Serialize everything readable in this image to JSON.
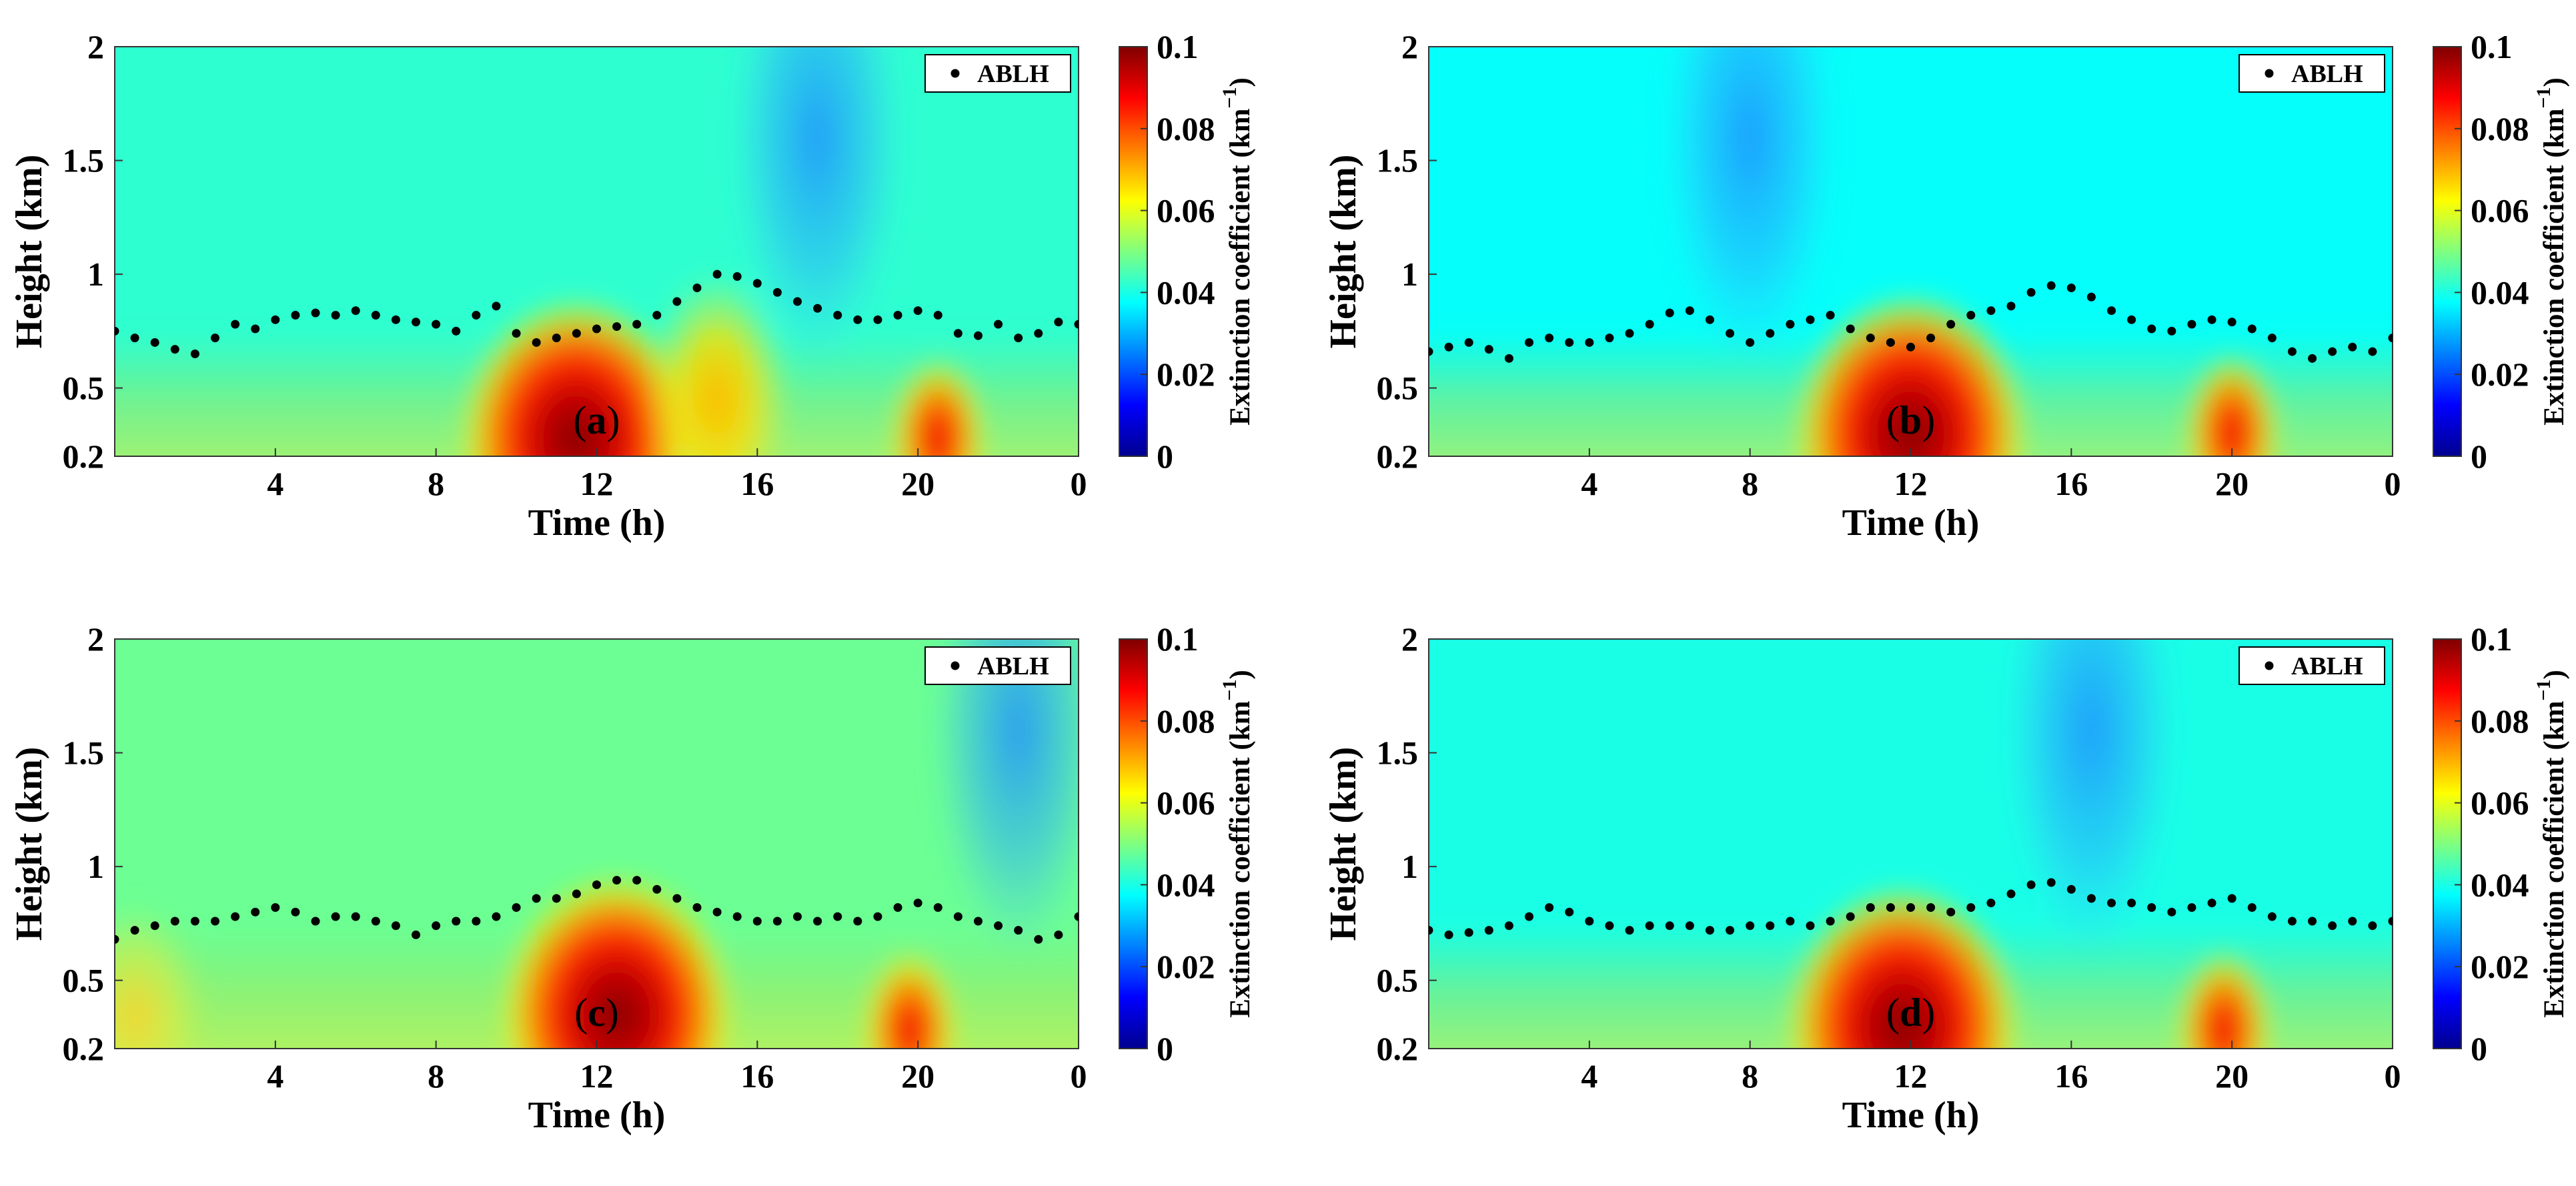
{
  "chart_data": [
    {
      "type": "heatmap",
      "panel_label": "a",
      "xlabel": "Time (h)",
      "ylabel": "Height (km)",
      "colorbar_label": "Extinction coefficient (km",
      "colorbar_exponent": "−1",
      "colorbar_close": ")",
      "x_ticks": [
        "4",
        "8",
        "12",
        "16",
        "20",
        "0"
      ],
      "x_tick_values": [
        4,
        8,
        12,
        16,
        20,
        24
      ],
      "y_ticks": [
        "0.2",
        "0.5",
        "1",
        "1.5",
        "2"
      ],
      "y_tick_values": [
        0.2,
        0.5,
        1,
        1.5,
        2
      ],
      "xlim": [
        0,
        24
      ],
      "ylim": [
        0.2,
        2
      ],
      "colorbar_ticks": [
        "0",
        "0.02",
        "0.04",
        "0.06",
        "0.08",
        "0.1"
      ],
      "colorbar_tick_values": [
        0,
        0.02,
        0.04,
        0.06,
        0.08,
        0.1
      ],
      "clim": [
        0,
        0.1
      ],
      "background_extinction": 0.042,
      "legend": "ABLH",
      "legend_position": "top-right",
      "ablh": {
        "time": [
          0,
          0.5,
          1,
          1.5,
          2,
          2.5,
          3,
          3.5,
          4,
          4.5,
          5,
          5.5,
          6,
          6.5,
          7,
          7.5,
          8,
          8.5,
          9,
          9.5,
          10,
          10.5,
          11,
          11.5,
          12,
          12.5,
          13,
          13.5,
          14,
          14.5,
          15,
          15.5,
          16,
          16.5,
          17,
          17.5,
          18,
          18.5,
          19,
          19.5,
          20,
          20.5,
          21,
          21.5,
          22,
          22.5,
          23,
          23.5,
          24
        ],
        "height": [
          0.75,
          0.72,
          0.7,
          0.67,
          0.65,
          0.72,
          0.78,
          0.76,
          0.8,
          0.82,
          0.83,
          0.82,
          0.84,
          0.82,
          0.8,
          0.79,
          0.78,
          0.75,
          0.82,
          0.86,
          0.74,
          0.7,
          0.72,
          0.74,
          0.76,
          0.77,
          0.78,
          0.82,
          0.88,
          0.94,
          1.0,
          0.99,
          0.96,
          0.92,
          0.88,
          0.85,
          0.82,
          0.8,
          0.8,
          0.82,
          0.84,
          0.82,
          0.74,
          0.73,
          0.78,
          0.72,
          0.74,
          0.79,
          0.78
        ]
      },
      "features": [
        {
          "name": "midday plume",
          "time_center": 11.5,
          "height_center": 0.28,
          "extinction_peak": 0.1
        },
        {
          "name": "afternoon plume",
          "time_center": 15.0,
          "height_center": 0.45,
          "extinction_peak": 0.068
        },
        {
          "name": "evening plume",
          "time_center": 20.5,
          "height_center": 0.28,
          "extinction_peak": 0.082
        },
        {
          "name": "upper clean air",
          "time_center": 17.5,
          "height_center": 1.6,
          "extinction_peak": 0.032
        }
      ]
    },
    {
      "type": "heatmap",
      "panel_label": "b",
      "xlabel": "Time (h)",
      "ylabel": "Height (km)",
      "colorbar_label": "Extinction coefficient (km",
      "colorbar_exponent": "−1",
      "colorbar_close": ")",
      "x_ticks": [
        "4",
        "8",
        "12",
        "16",
        "20",
        "0"
      ],
      "x_tick_values": [
        4,
        8,
        12,
        16,
        20,
        24
      ],
      "y_ticks": [
        "0.2",
        "0.5",
        "1",
        "1.5",
        "2"
      ],
      "y_tick_values": [
        0.2,
        0.5,
        1,
        1.5,
        2
      ],
      "xlim": [
        0,
        24
      ],
      "ylim": [
        0.2,
        2
      ],
      "colorbar_ticks": [
        "0",
        "0.02",
        "0.04",
        "0.06",
        "0.08",
        "0.1"
      ],
      "colorbar_tick_values": [
        0,
        0.02,
        0.04,
        0.06,
        0.08,
        0.1
      ],
      "clim": [
        0,
        0.1
      ],
      "background_extinction": 0.038,
      "legend": "ABLH",
      "legend_position": "top-right",
      "ablh": {
        "time": [
          0,
          0.5,
          1,
          1.5,
          2,
          2.5,
          3,
          3.5,
          4,
          4.5,
          5,
          5.5,
          6,
          6.5,
          7,
          7.5,
          8,
          8.5,
          9,
          9.5,
          10,
          10.5,
          11,
          11.5,
          12,
          12.5,
          13,
          13.5,
          14,
          14.5,
          15,
          15.5,
          16,
          16.5,
          17,
          17.5,
          18,
          18.5,
          19,
          19.5,
          20,
          20.5,
          21,
          21.5,
          22,
          22.5,
          23,
          23.5,
          24
        ],
        "height": [
          0.66,
          0.68,
          0.7,
          0.67,
          0.63,
          0.7,
          0.72,
          0.7,
          0.7,
          0.72,
          0.74,
          0.78,
          0.83,
          0.84,
          0.8,
          0.74,
          0.7,
          0.74,
          0.78,
          0.8,
          0.82,
          0.76,
          0.72,
          0.7,
          0.68,
          0.72,
          0.78,
          0.82,
          0.84,
          0.86,
          0.92,
          0.95,
          0.94,
          0.9,
          0.84,
          0.8,
          0.76,
          0.75,
          0.78,
          0.8,
          0.79,
          0.76,
          0.72,
          0.66,
          0.63,
          0.66,
          0.68,
          0.66,
          0.72
        ]
      },
      "features": [
        {
          "name": "midday plume",
          "time_center": 12.0,
          "height_center": 0.3,
          "extinction_peak": 0.1
        },
        {
          "name": "evening plume",
          "time_center": 20.0,
          "height_center": 0.3,
          "extinction_peak": 0.085
        },
        {
          "name": "upper clean air",
          "time_center": 8.0,
          "height_center": 1.6,
          "extinction_peak": 0.032
        }
      ]
    },
    {
      "type": "heatmap",
      "panel_label": "c",
      "xlabel": "Time (h)",
      "ylabel": "Height (km)",
      "colorbar_label": "Extinction coefficient (km",
      "colorbar_exponent": "−1",
      "colorbar_close": ")",
      "x_ticks": [
        "4",
        "8",
        "12",
        "16",
        "20",
        "0"
      ],
      "x_tick_values": [
        4,
        8,
        12,
        16,
        20,
        24
      ],
      "y_ticks": [
        "0.2",
        "0.5",
        "1",
        "1.5",
        "2"
      ],
      "y_tick_values": [
        0.2,
        0.5,
        1,
        1.5,
        2
      ],
      "xlim": [
        0,
        24
      ],
      "ylim": [
        0.2,
        2
      ],
      "colorbar_ticks": [
        "0",
        "0.02",
        "0.04",
        "0.06",
        "0.08",
        "0.1"
      ],
      "colorbar_tick_values": [
        0,
        0.02,
        0.04,
        0.06,
        0.08,
        0.1
      ],
      "clim": [
        0,
        0.1
      ],
      "background_extinction": 0.048,
      "legend": "ABLH",
      "legend_position": "top-right",
      "ablh": {
        "time": [
          0,
          0.5,
          1,
          1.5,
          2,
          2.5,
          3,
          3.5,
          4,
          4.5,
          5,
          5.5,
          6,
          6.5,
          7,
          7.5,
          8,
          8.5,
          9,
          9.5,
          10,
          10.5,
          11,
          11.5,
          12,
          12.5,
          13,
          13.5,
          14,
          14.5,
          15,
          15.5,
          16,
          16.5,
          17,
          17.5,
          18,
          18.5,
          19,
          19.5,
          20,
          20.5,
          21,
          21.5,
          22,
          22.5,
          23,
          23.5,
          24
        ],
        "height": [
          0.68,
          0.72,
          0.74,
          0.76,
          0.76,
          0.76,
          0.78,
          0.8,
          0.82,
          0.8,
          0.76,
          0.78,
          0.78,
          0.76,
          0.74,
          0.7,
          0.74,
          0.76,
          0.76,
          0.78,
          0.82,
          0.86,
          0.86,
          0.88,
          0.92,
          0.94,
          0.94,
          0.9,
          0.86,
          0.82,
          0.8,
          0.78,
          0.76,
          0.76,
          0.78,
          0.76,
          0.78,
          0.76,
          0.78,
          0.82,
          0.84,
          0.82,
          0.78,
          0.76,
          0.74,
          0.72,
          0.68,
          0.7,
          0.78
        ]
      },
      "features": [
        {
          "name": "midday plume",
          "time_center": 12.5,
          "height_center": 0.35,
          "extinction_peak": 0.1
        },
        {
          "name": "evening plume",
          "time_center": 19.8,
          "height_center": 0.28,
          "extinction_peak": 0.088
        },
        {
          "name": "early morning haze",
          "time_center": 0.5,
          "height_center": 0.35,
          "extinction_peak": 0.058
        },
        {
          "name": "late night clean air",
          "time_center": 22.5,
          "height_center": 1.6,
          "extinction_peak": 0.028
        }
      ]
    },
    {
      "type": "heatmap",
      "panel_label": "d",
      "xlabel": "Time (h)",
      "ylabel": "Height (km)",
      "colorbar_label": "Extinction coefficient (km",
      "colorbar_exponent": "−1",
      "colorbar_close": ")",
      "x_ticks": [
        "4",
        "8",
        "12",
        "16",
        "20",
        "0"
      ],
      "x_tick_values": [
        4,
        8,
        12,
        16,
        20,
        24
      ],
      "y_ticks": [
        "0.2",
        "0.5",
        "1",
        "1.5",
        "2"
      ],
      "y_tick_values": [
        0.2,
        0.5,
        1,
        1.5,
        2
      ],
      "xlim": [
        0,
        24
      ],
      "ylim": [
        0.2,
        2
      ],
      "colorbar_ticks": [
        "0",
        "0.02",
        "0.04",
        "0.06",
        "0.08",
        "0.1"
      ],
      "colorbar_tick_values": [
        0,
        0.02,
        0.04,
        0.06,
        0.08,
        0.1
      ],
      "clim": [
        0,
        0.1
      ],
      "background_extinction": 0.04,
      "legend": "ABLH",
      "legend_position": "top-right",
      "ablh": {
        "time": [
          0,
          0.5,
          1,
          1.5,
          2,
          2.5,
          3,
          3.5,
          4,
          4.5,
          5,
          5.5,
          6,
          6.5,
          7,
          7.5,
          8,
          8.5,
          9,
          9.5,
          10,
          10.5,
          11,
          11.5,
          12,
          12.5,
          13,
          13.5,
          14,
          14.5,
          15,
          15.5,
          16,
          16.5,
          17,
          17.5,
          18,
          18.5,
          19,
          19.5,
          20,
          20.5,
          21,
          21.5,
          22,
          22.5,
          23,
          23.5,
          24
        ],
        "height": [
          0.72,
          0.7,
          0.71,
          0.72,
          0.74,
          0.78,
          0.82,
          0.8,
          0.76,
          0.74,
          0.72,
          0.74,
          0.74,
          0.74,
          0.72,
          0.72,
          0.74,
          0.74,
          0.76,
          0.74,
          0.76,
          0.78,
          0.82,
          0.82,
          0.82,
          0.82,
          0.8,
          0.82,
          0.84,
          0.88,
          0.92,
          0.93,
          0.9,
          0.86,
          0.84,
          0.84,
          0.82,
          0.8,
          0.82,
          0.84,
          0.86,
          0.82,
          0.78,
          0.76,
          0.76,
          0.74,
          0.76,
          0.74,
          0.76
        ]
      },
      "features": [
        {
          "name": "midday plume",
          "time_center": 11.8,
          "height_center": 0.3,
          "extinction_peak": 0.1
        },
        {
          "name": "evening plume",
          "time_center": 19.8,
          "height_center": 0.28,
          "extinction_peak": 0.078
        },
        {
          "name": "upper clean air",
          "time_center": 16.5,
          "height_center": 1.6,
          "extinction_peak": 0.03
        }
      ]
    }
  ]
}
